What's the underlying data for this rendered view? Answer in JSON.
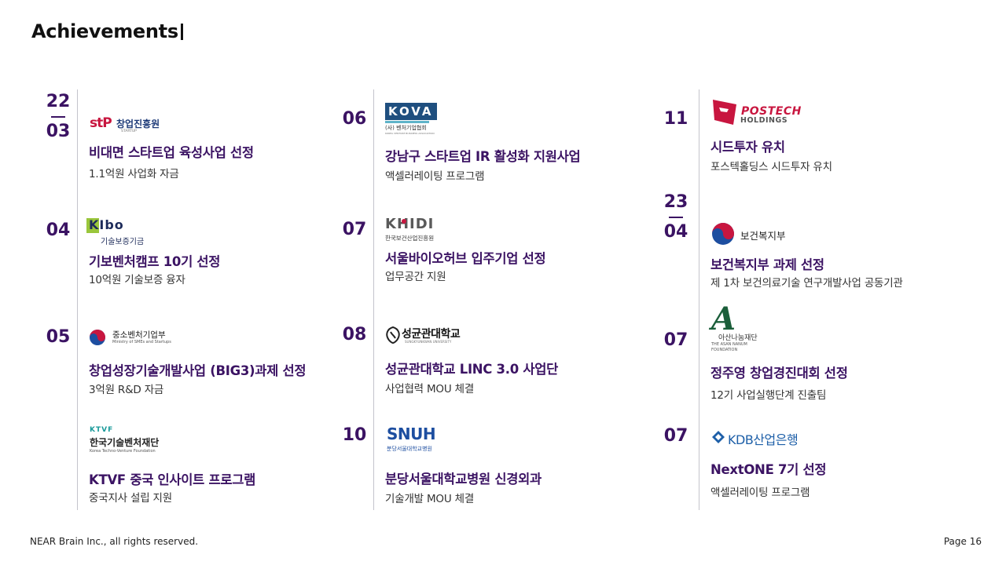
{
  "page": {
    "title": "Achievements",
    "footer_left": "NEAR Brain Inc., all rights reserved.",
    "footer_right": "Page 16"
  },
  "colors": {
    "accent": "#3b1363",
    "divider": "#c4c4cc",
    "postech": "#c8163f",
    "kova": "#1f4f7f",
    "kdb": "#1d5fa8"
  },
  "columns": [
    {
      "items": [
        {
          "date_top": "22",
          "date_bottom": "03",
          "logo": "stp-logo",
          "logo_text": "창업진흥원",
          "logo_mark": "stP",
          "logo_sub": "STARTUP",
          "title": "비대면 스타트업 육성사업 선정",
          "subtitle": "1.1억원 사업화 자금"
        },
        {
          "date": "04",
          "logo": "kibo-logo",
          "logo_mark": "KIbo",
          "logo_text": "기술보증기금",
          "title": "기보벤처캠프 10기 선정",
          "subtitle": "10억원 기술보증 융자"
        },
        {
          "date": "05",
          "logo": "mss-logo",
          "logo_text": "중소벤처기업부",
          "logo_sub": "Ministry of SMEs and Startups",
          "title": "창업성장기술개발사업 (BIG3)과제 선정",
          "subtitle": "3억원 R&D 자금"
        },
        {
          "date": "",
          "logo": "ktvf-logo",
          "logo_mark": "KTVF",
          "logo_text": "한국기술벤처재단",
          "logo_sub": "Korea Techno-Venture Foundation",
          "title": "KTVF 중국 인사이트 프로그램",
          "subtitle": "중국지사 설립 지원"
        }
      ]
    },
    {
      "items": [
        {
          "date": "06",
          "logo": "kova-logo",
          "logo_mark": "KOVA",
          "logo_text": "(사) 벤처기업협회",
          "logo_sub": "KOREA VENTURE BUSINESS ASSOCIATION",
          "title": "강남구 스타트업 IR 활성화 지원사업",
          "subtitle": "액셀러레이팅 프로그램"
        },
        {
          "date": "07",
          "logo": "khidi-logo",
          "logo_mark": "KHIDI",
          "logo_text": "한국보건산업진흥원",
          "title": "서울바이오허브 입주기업 선정",
          "subtitle": "업무공간 지원"
        },
        {
          "date": "08",
          "logo": "skku-logo",
          "logo_text": "성균관대학교",
          "logo_sub": "SUNGKYUNKWAN UNIVERSITY",
          "title": "성균관대학교 LINC 3.0 사업단",
          "subtitle": "사업협력 MOU 체결"
        },
        {
          "date": "10",
          "logo": "snuh-logo",
          "logo_mark": "SNUH",
          "logo_text": "분당서울대학교병원",
          "title": "분당서울대학교병원 신경외과",
          "subtitle": "기술개발 MOU 체결"
        }
      ]
    },
    {
      "items": [
        {
          "date": "11",
          "logo": "postech-logo",
          "logo_mark": "POSTECH",
          "logo_text": "HOLDINGS",
          "title": "시드투자 유치",
          "subtitle": "포스텍홀딩스 시드투자 유치"
        },
        {
          "date_top": "23",
          "date_bottom": "04",
          "logo": "mohw-logo",
          "logo_text": "보건복지부",
          "title": "보건복지부 과제 선정",
          "subtitle": "제 1차 보건의료기술 연구개발사업 공동기관"
        },
        {
          "date": "07",
          "logo": "asan-logo",
          "logo_mark": "A",
          "logo_text": "아산나눔재단",
          "logo_sub": "THE ASAN NANUM FOUNDATION",
          "title": "정주영 창업경진대회 선정",
          "subtitle": "12기 사업실행단계 진출팀"
        },
        {
          "date": "07",
          "logo": "kdb-logo",
          "logo_text": "KDB산업은행",
          "title": "NextONE 7기 선정",
          "subtitle": "액셀러레이팅 프로그램"
        }
      ]
    }
  ]
}
